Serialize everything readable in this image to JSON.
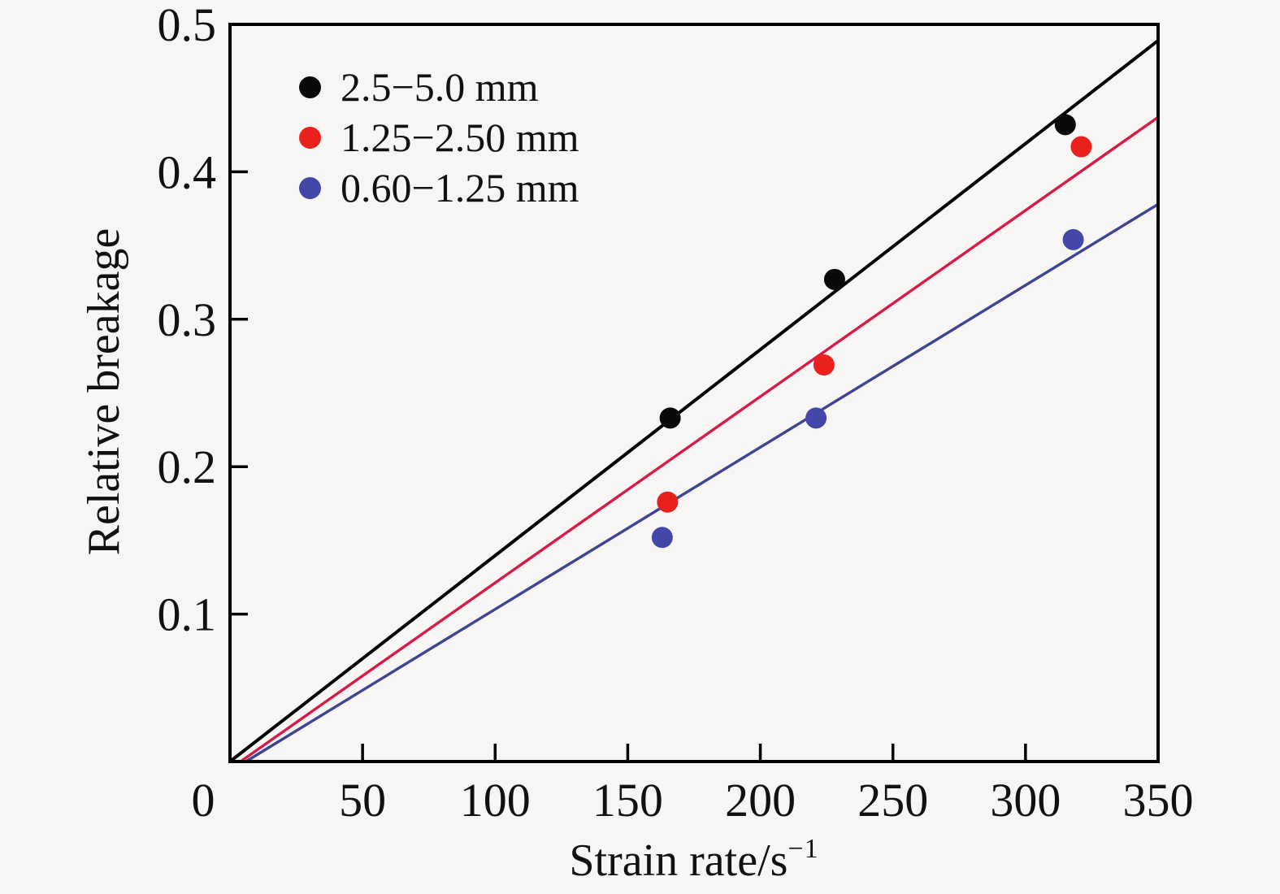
{
  "figure": {
    "background": "#f7f6f4",
    "text_color": "#111111",
    "frame_color": "#000000"
  },
  "chart_data": {
    "type": "scatter",
    "title": "",
    "xlabel_base": "Strain rate/s",
    "xlabel_sup": "−1",
    "ylabel": "Relative breakage",
    "xlim": [
      0,
      350
    ],
    "ylim": [
      0,
      0.5
    ],
    "x_tick_values": [
      0,
      50,
      100,
      150,
      200,
      250,
      300,
      350
    ],
    "x_tick_labels": [
      "0",
      "50",
      "100",
      "150",
      "200",
      "250",
      "300",
      "350"
    ],
    "x_tick_marks": [
      50,
      100,
      150,
      200,
      250,
      300
    ],
    "y_tick_values": [
      0.1,
      0.2,
      0.3,
      0.4,
      0.5
    ],
    "y_tick_labels": [
      "0.1",
      "0.2",
      "0.3",
      "0.4",
      "0.5"
    ],
    "y_tick_marks": [
      0.1,
      0.2,
      0.3,
      0.4
    ],
    "grid": false,
    "legend_position": "upper left inside",
    "series": [
      {
        "name": "2.5−5.0 mm",
        "point_color": "#0a0a0a",
        "line_color": "#000000",
        "points": [
          [
            166,
            0.233
          ],
          [
            228,
            0.327
          ],
          [
            315,
            0.432
          ]
        ],
        "fit_line": [
          [
            0,
            0.0
          ],
          [
            350,
            0.489
          ]
        ]
      },
      {
        "name": "1.25−2.50 mm",
        "point_color": "#e8211d",
        "line_color": "#d81a48",
        "points": [
          [
            165,
            0.176
          ],
          [
            224,
            0.269
          ],
          [
            321,
            0.417
          ]
        ],
        "fit_line": [
          [
            4,
            0.0
          ],
          [
            350,
            0.437
          ]
        ]
      },
      {
        "name": "0.60−1.25 mm",
        "point_color": "#4348a8",
        "line_color": "#3f4492",
        "points": [
          [
            163,
            0.152
          ],
          [
            221,
            0.233
          ],
          [
            318,
            0.354
          ]
        ],
        "fit_line": [
          [
            6,
            0.0
          ],
          [
            350,
            0.378
          ]
        ]
      }
    ]
  }
}
